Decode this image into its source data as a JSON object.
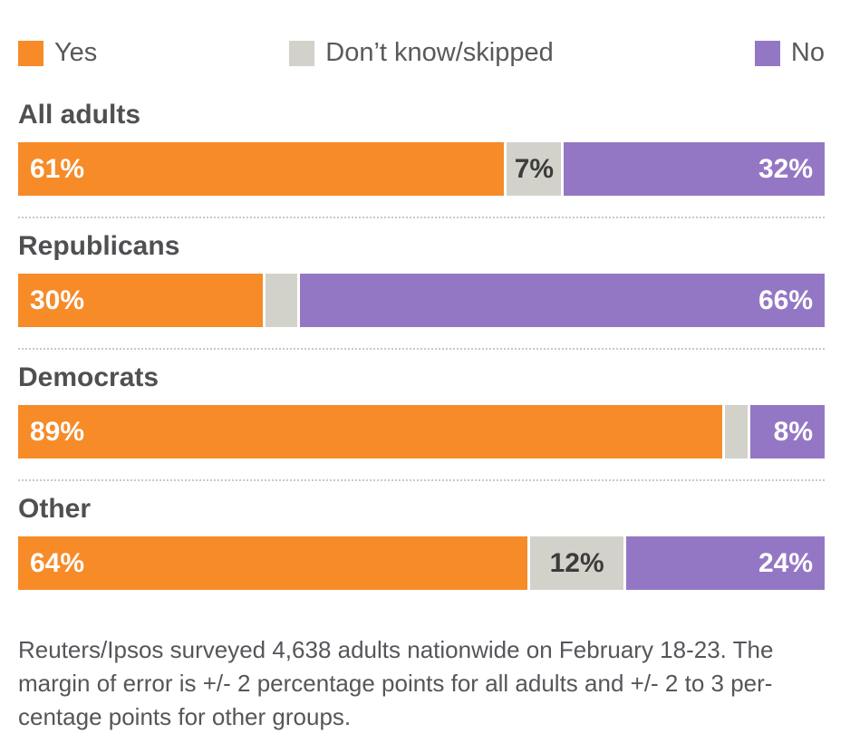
{
  "legend": {
    "items": [
      {
        "label": "Yes",
        "color": "#f68b28"
      },
      {
        "label": "Don’t know/skipped",
        "color": "#d2d2cb"
      },
      {
        "label": "No",
        "color": "#9477c4"
      }
    ]
  },
  "chart_data": {
    "type": "bar",
    "orientation": "horizontal",
    "stacked": true,
    "categories": [
      "All adults",
      "Republicans",
      "Democrats",
      "Other"
    ],
    "series": [
      {
        "name": "Yes",
        "color": "#f68b28",
        "values": [
          61,
          30,
          89,
          64
        ]
      },
      {
        "name": "Don’t know/skipped",
        "color": "#d2d2cb",
        "values": [
          7,
          4,
          3,
          12
        ]
      },
      {
        "name": "No",
        "color": "#9477c4",
        "values": [
          32,
          66,
          8,
          24
        ]
      }
    ],
    "xlim": [
      0,
      100
    ],
    "grid": false,
    "legend_position": "top",
    "value_label_format": "percent"
  },
  "groups": [
    {
      "label": "All adults",
      "yes": 61,
      "dk": 7,
      "no": 32,
      "yes_label": "61%",
      "dk_label": "7%",
      "no_label": "32%"
    },
    {
      "label": "Republicans",
      "yes": 30,
      "dk": 4,
      "no": 66,
      "yes_label": "30%",
      "dk_label": "",
      "no_label": "66%"
    },
    {
      "label": "Democrats",
      "yes": 89,
      "dk": 3,
      "no": 8,
      "yes_label": "89%",
      "dk_label": "",
      "no_label": "8%"
    },
    {
      "label": "Other",
      "yes": 64,
      "dk": 12,
      "no": 24,
      "yes_label": "64%",
      "dk_label": "12%",
      "no_label": "24%"
    }
  ],
  "footer": {
    "lines": [
      "Reuters/Ipsos surveyed 4,638 adults nationwide on February 18-23. The",
      "margin of error is +/- 2 percentage points for all adults and +/- 2 to 3 per-",
      "centage points for other groups."
    ]
  }
}
